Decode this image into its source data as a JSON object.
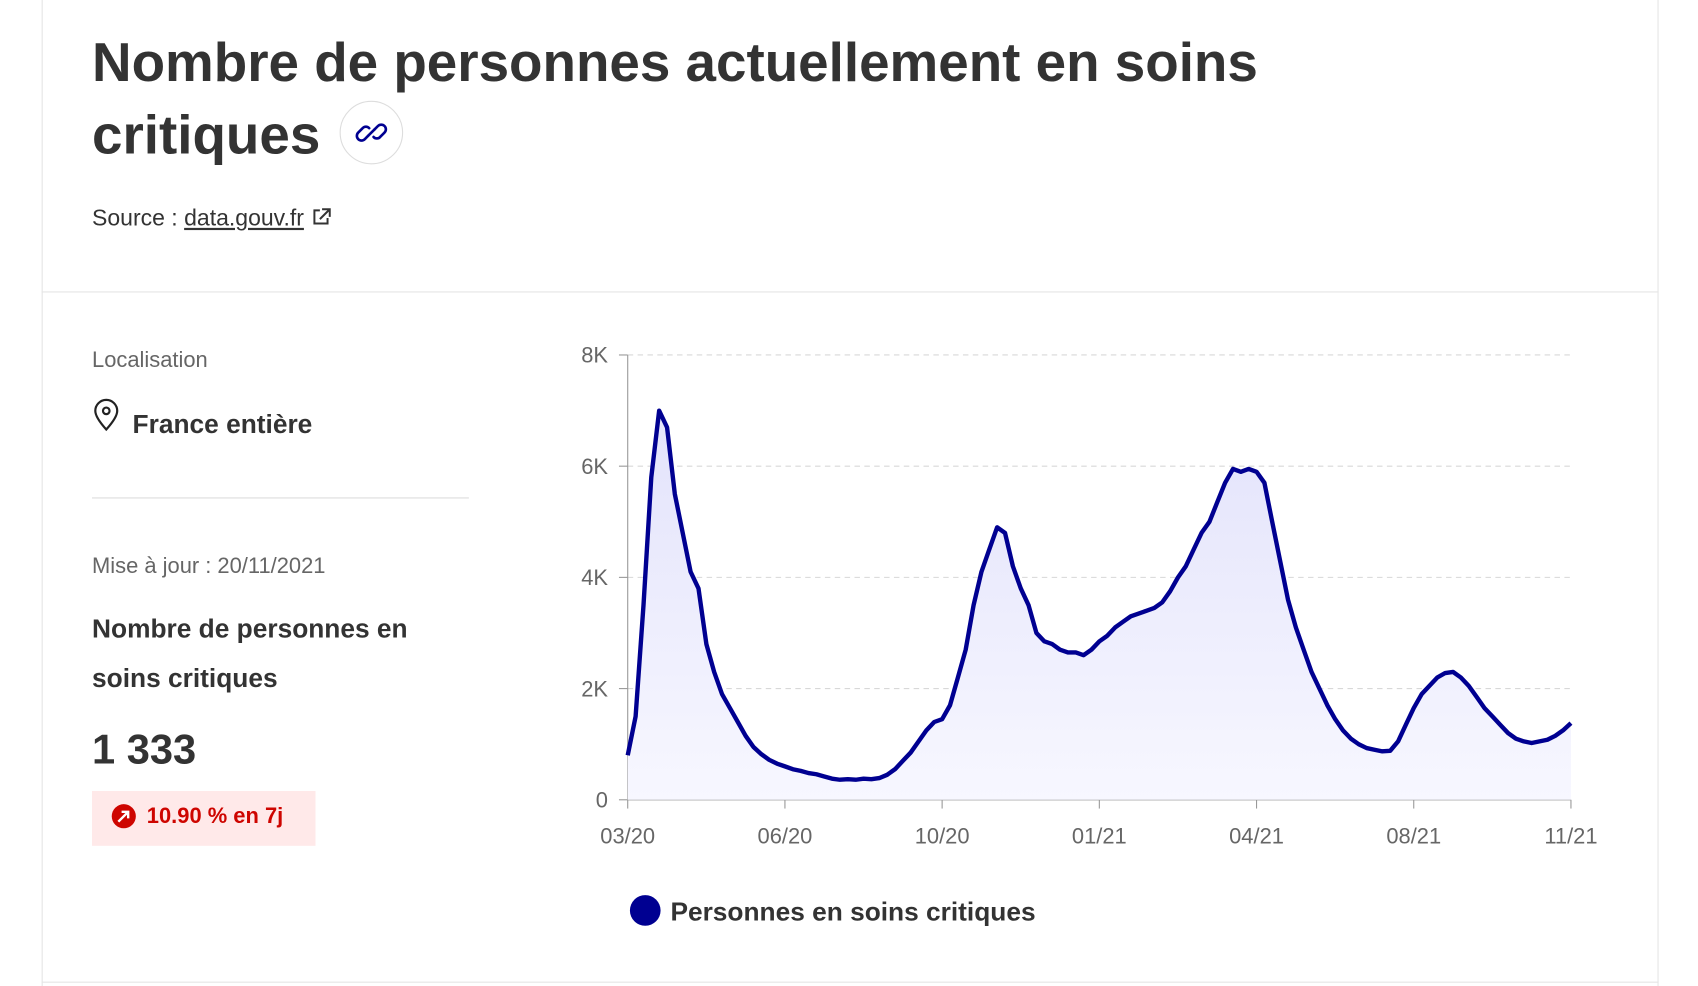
{
  "header": {
    "title": "Nombre de personnes actuellement en soins critiques",
    "source_label": "Source :",
    "source_link": "data.gouv.fr"
  },
  "panel": {
    "location_label": "Localisation",
    "location": "France entière",
    "update": "Mise à jour : 20/11/2021",
    "indicator": "Nombre de personnes en soins critiques",
    "current": "1 333",
    "trend": "10.90 % en 7j"
  },
  "chart_data": {
    "type": "line",
    "categories": [
      "03/20",
      null,
      null,
      null,
      null,
      null,
      null,
      null,
      null,
      null,
      null,
      null,
      null,
      null,
      null,
      null,
      null,
      null,
      null,
      null,
      "06/20",
      null,
      null,
      null,
      null,
      null,
      null,
      null,
      null,
      null,
      null,
      null,
      null,
      null,
      null,
      null,
      null,
      null,
      null,
      null,
      "10/20",
      null,
      null,
      null,
      null,
      null,
      null,
      null,
      null,
      null,
      null,
      null,
      null,
      null,
      null,
      null,
      null,
      null,
      null,
      null,
      "01/21",
      null,
      null,
      null,
      null,
      null,
      null,
      null,
      null,
      null,
      null,
      null,
      null,
      null,
      null,
      null,
      null,
      null,
      null,
      null,
      "04/21",
      null,
      null,
      null,
      null,
      null,
      null,
      null,
      null,
      null,
      null,
      null,
      null,
      null,
      null,
      null,
      null,
      null,
      null,
      null,
      "08/21",
      null,
      null,
      null,
      null,
      null,
      null,
      null,
      null,
      null,
      null,
      null,
      null,
      null,
      null,
      null,
      null,
      null,
      null,
      null,
      "11/21"
    ],
    "series": [
      {
        "name": "Personnes en soins critiques",
        "color": "#000091",
        "values": [
          800,
          1500,
          3500,
          5800,
          7000,
          6700,
          5500,
          4800,
          4100,
          3800,
          2800,
          2300,
          1900,
          1650,
          1400,
          1150,
          950,
          820,
          720,
          650,
          600,
          550,
          520,
          480,
          460,
          420,
          380,
          360,
          370,
          360,
          380,
          370,
          390,
          450,
          550,
          700,
          850,
          1050,
          1250,
          1400,
          1450,
          1700,
          2200,
          2700,
          3500,
          4100,
          4500,
          4900,
          4800,
          4200,
          3800,
          3500,
          3000,
          2850,
          2800,
          2700,
          2650,
          2650,
          2600,
          2700,
          2850,
          2950,
          3100,
          3200,
          3300,
          3350,
          3400,
          3450,
          3550,
          3750,
          4000,
          4200,
          4500,
          4800,
          5000,
          5350,
          5700,
          5950,
          5900,
          5950,
          5900,
          5700,
          5000,
          4300,
          3600,
          3100,
          2700,
          2300,
          2000,
          1700,
          1450,
          1250,
          1100,
          1000,
          930,
          900,
          870,
          880,
          1050,
          1350,
          1650,
          1900,
          2050,
          2200,
          2280,
          2300,
          2200,
          2050,
          1850,
          1650,
          1500,
          1350,
          1200,
          1100,
          1050,
          1020,
          1050,
          1080,
          1150,
          1250,
          1380
        ]
      }
    ],
    "ylim": [
      0,
      8000
    ],
    "yticks": [
      0,
      {
        "value": 2000,
        "label": "2K"
      },
      {
        "value": 4000,
        "label": "4K"
      },
      {
        "value": 6000,
        "label": "6K"
      },
      {
        "value": 8000,
        "label": "8K"
      }
    ],
    "grid": true,
    "area": true,
    "legend": "bottom"
  }
}
